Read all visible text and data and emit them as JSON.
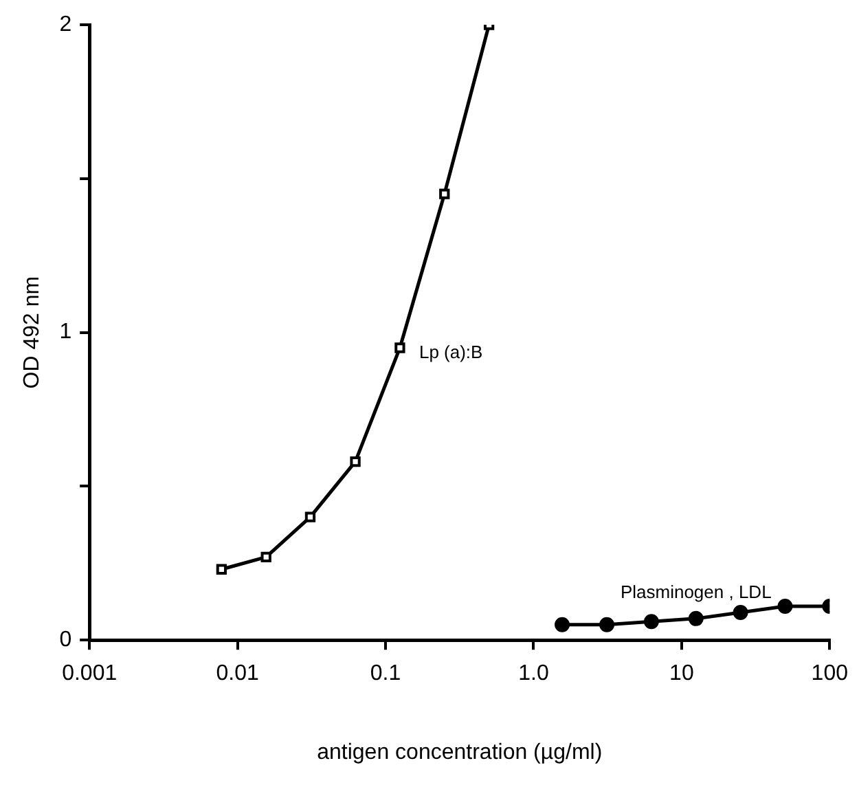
{
  "chart_data": {
    "type": "line",
    "xlabel": "antigen concentration (µg/ml)",
    "ylabel": "OD 492 nm",
    "log": "x",
    "xlim": [
      0.001,
      100
    ],
    "xticks": [
      0.001,
      0.01,
      0.1,
      {
        "value": 1,
        "label": "1.0"
      },
      10,
      100
    ],
    "ylim": [
      0,
      2
    ],
    "yticks": [
      0,
      {
        "value": 0.5,
        "label": null
      },
      1,
      {
        "value": 1.5,
        "label": null
      },
      2
    ],
    "grid": false,
    "legend": false,
    "line_style": "solid",
    "series": [
      {
        "name": "Lp (a):B",
        "color": "#000000",
        "marker": "square",
        "x": [
          0.0078,
          0.0156,
          0.031,
          0.0625,
          0.125,
          0.25,
          0.5
        ],
        "values": [
          0.23,
          0.27,
          0.4,
          0.58,
          0.95,
          1.45,
          2.0
        ]
      },
      {
        "name": "Plasminogen , LDL",
        "color": "#000000",
        "marker": "circle",
        "x": [
          1.56,
          3.125,
          6.25,
          12.5,
          25,
          50,
          100
        ],
        "values": [
          0.05,
          0.05,
          0.06,
          0.07,
          0.09,
          0.11,
          0.11
        ]
      }
    ]
  }
}
